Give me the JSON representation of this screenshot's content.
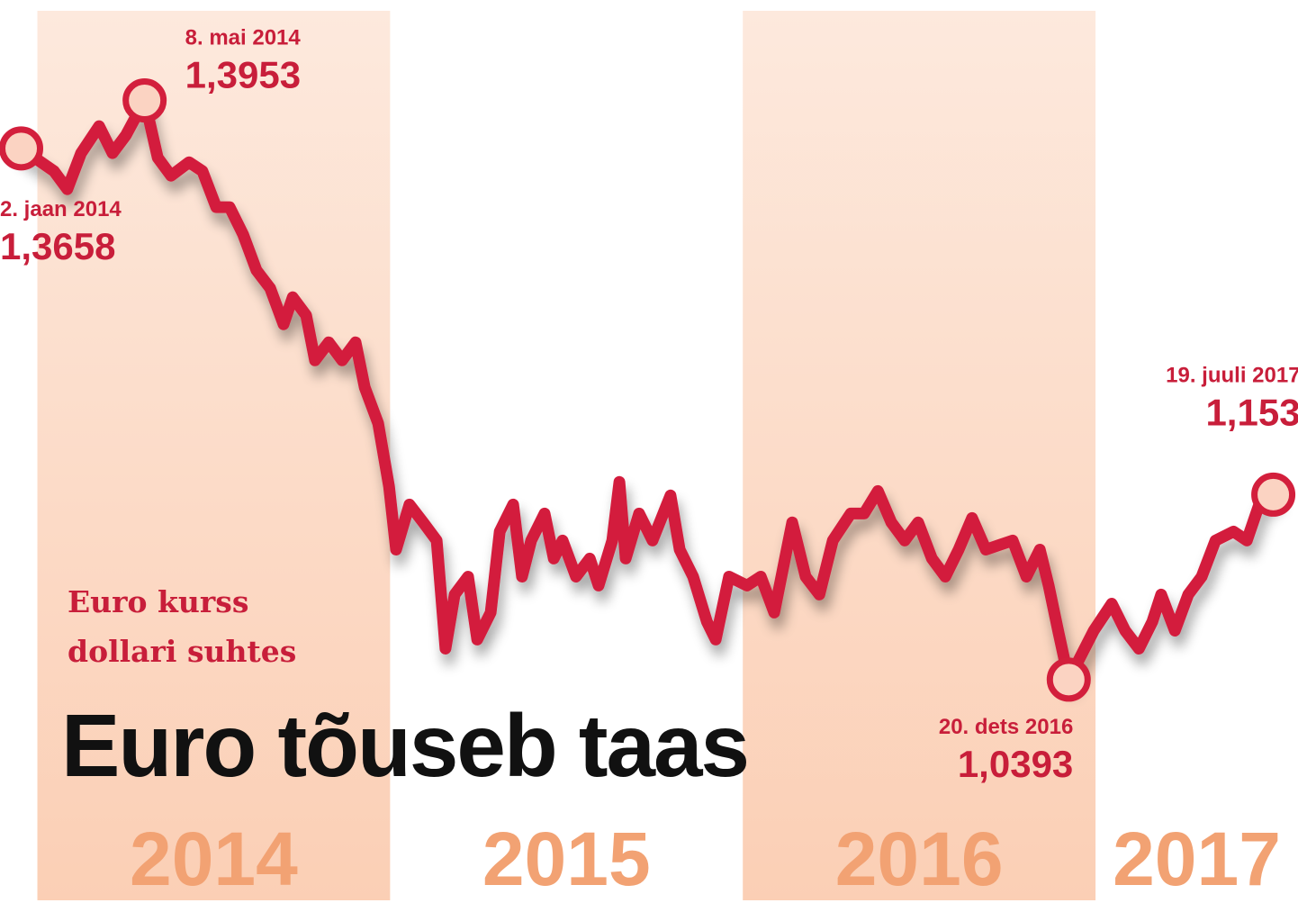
{
  "chart_data": {
    "type": "line",
    "title": "Euro tõuseb taas",
    "subtitle": [
      "Euro kurss",
      "dollari suhtes"
    ],
    "xlim": [
      2013.94,
      2017.62
    ],
    "xticks": [
      2014,
      2015,
      2016,
      2017
    ],
    "ylim": [
      0.902,
      1.457
    ],
    "series": [
      {
        "color": "#d31f3c",
        "x": [
          2014.0,
          2014.093,
          2014.131,
          2014.17,
          2014.221,
          2014.259,
          2014.297,
          2014.35,
          2014.387,
          2014.425,
          2014.476,
          2014.514,
          2014.553,
          2014.591,
          2014.629,
          2014.667,
          2014.706,
          2014.744,
          2014.77,
          2014.808,
          2014.833,
          2014.872,
          2014.91,
          2014.948,
          2014.974,
          2015.012,
          2015.043,
          2015.063,
          2015.101,
          2015.14,
          2015.178,
          2015.203,
          2015.229,
          2015.267,
          2015.293,
          2015.331,
          2015.357,
          2015.395,
          2015.42,
          2015.446,
          2015.484,
          2015.51,
          2015.535,
          2015.573,
          2015.612,
          2015.637,
          2015.676,
          2015.696,
          2015.714,
          2015.752,
          2015.79,
          2015.841,
          2015.867,
          2015.905,
          2015.944,
          2015.969,
          2016.007,
          2016.058,
          2016.097,
          2016.135,
          2016.186,
          2016.224,
          2016.263,
          2016.301,
          2016.352,
          2016.39,
          2016.429,
          2016.467,
          2016.505,
          2016.543,
          2016.582,
          2016.62,
          2016.658,
          2016.696,
          2016.735,
          2016.773,
          2016.811,
          2016.85,
          2016.888,
          2016.913,
          2016.94,
          2016.97,
          2017.041,
          2017.092,
          2017.13,
          2017.169,
          2017.207,
          2017.232,
          2017.271,
          2017.309,
          2017.347,
          2017.386,
          2017.437,
          2017.475,
          2017.51,
          2017.55
        ],
        "values": [
          1.3658,
          1.3518,
          1.3407,
          1.3629,
          1.3795,
          1.3629,
          1.3739,
          1.3953,
          1.3601,
          1.349,
          1.3573,
          1.3518,
          1.3297,
          1.3297,
          1.313,
          1.2909,
          1.2798,
          1.2577,
          1.2743,
          1.2632,
          1.2355,
          1.2466,
          1.2355,
          1.2466,
          1.2189,
          1.1968,
          1.158,
          1.1192,
          1.1469,
          1.1359,
          1.1248,
          1.0583,
          1.0916,
          1.1026,
          1.0639,
          1.0805,
          1.1303,
          1.1469,
          1.1026,
          1.1248,
          1.1414,
          1.1137,
          1.1248,
          1.1026,
          1.1137,
          1.0971,
          1.1248,
          1.1608,
          1.1137,
          1.1414,
          1.1248,
          1.1525,
          1.1192,
          1.1026,
          1.0749,
          1.0639,
          1.1026,
          1.0971,
          1.1026,
          1.0805,
          1.1359,
          1.1026,
          1.0916,
          1.1248,
          1.1414,
          1.1414,
          1.1552,
          1.1359,
          1.1248,
          1.1359,
          1.1137,
          1.1026,
          1.1192,
          1.1386,
          1.1192,
          1.122,
          1.1248,
          1.1026,
          1.1192,
          1.0971,
          1.0694,
          1.0393,
          1.0694,
          1.086,
          1.0694,
          1.0583,
          1.0749,
          1.0916,
          1.0694,
          1.0916,
          1.1026,
          1.1248,
          1.1303,
          1.1248,
          1.1469,
          1.153
        ]
      }
    ],
    "annotations": [
      {
        "text": "2. jaan 2014",
        "x": 2014.0,
        "y": 1.3658,
        "value_label": "1,3658"
      },
      {
        "text": "8. mai 2014",
        "x": 2014.35,
        "y": 1.3953,
        "value_label": "1,3953"
      },
      {
        "text": "20. dets 2016",
        "x": 2016.97,
        "y": 1.0393,
        "value_label": "1,0393"
      },
      {
        "text": "19. juuli 2017",
        "x": 2017.55,
        "y": 1.153,
        "value_label": "1,153"
      }
    ]
  }
}
